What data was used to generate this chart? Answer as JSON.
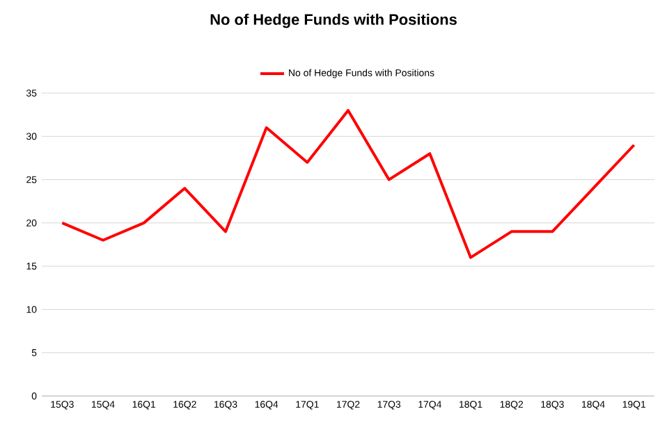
{
  "chart_data": {
    "type": "line",
    "title": "No of Hedge Funds with Positions",
    "categories": [
      "15Q3",
      "15Q4",
      "16Q1",
      "16Q2",
      "16Q3",
      "16Q4",
      "17Q1",
      "17Q2",
      "17Q3",
      "17Q4",
      "18Q1",
      "18Q2",
      "18Q3",
      "18Q4",
      "19Q1"
    ],
    "series": [
      {
        "name": "No of Hedge Funds with Positions",
        "color": "#ff0000",
        "values": [
          20,
          18,
          20,
          24,
          19,
          31,
          27,
          33,
          25,
          28,
          16,
          19,
          19,
          24,
          29
        ]
      }
    ],
    "ylim": [
      0,
      35
    ],
    "yticks": [
      0,
      5,
      10,
      15,
      20,
      25,
      30,
      35
    ],
    "grid": "y",
    "legend": "top",
    "marker": "none",
    "line_style": "solid"
  }
}
